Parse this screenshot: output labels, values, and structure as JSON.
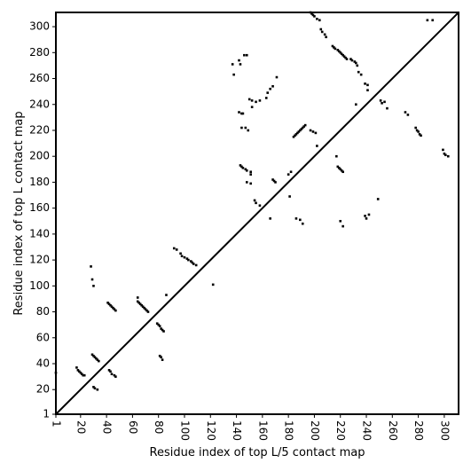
{
  "chart_data": {
    "type": "scatter",
    "xlabel": "Residue index of top L/5 contact map",
    "ylabel": "Residue index of top L contact map",
    "xlim": [
      1,
      311
    ],
    "ylim": [
      1,
      311
    ],
    "x_ticks": [
      1,
      20,
      40,
      60,
      80,
      100,
      120,
      140,
      160,
      180,
      200,
      220,
      240,
      260,
      280,
      300
    ],
    "x_tick_labels": [
      "1",
      "20",
      "40",
      "60",
      "80",
      "100",
      "120",
      "140",
      "160",
      "180",
      "200",
      "220",
      "240",
      "260",
      "280",
      "300"
    ],
    "y_ticks": [
      1,
      20,
      40,
      60,
      80,
      100,
      120,
      140,
      160,
      180,
      200,
      220,
      240,
      260,
      280,
      300
    ],
    "y_tick_labels": [
      "1",
      "20",
      "40",
      "60",
      "80",
      "100",
      "120",
      "140",
      "160",
      "180",
      "200",
      "220",
      "240",
      "260",
      "280",
      "300"
    ],
    "grid": false,
    "diagonal": true,
    "point_color": "#000000",
    "series": [
      {
        "region": "upper_left_top_L",
        "points": [
          [
            1,
            33
          ],
          [
            17,
            37
          ],
          [
            18,
            35
          ],
          [
            19,
            34
          ],
          [
            20,
            33
          ],
          [
            21,
            32
          ],
          [
            22,
            31
          ],
          [
            23,
            31
          ],
          [
            28,
            115
          ],
          [
            29,
            105
          ],
          [
            30,
            100
          ],
          [
            29,
            47
          ],
          [
            30,
            46
          ],
          [
            31,
            45
          ],
          [
            32,
            44
          ],
          [
            33,
            43
          ],
          [
            34,
            42
          ],
          [
            30,
            22
          ],
          [
            31,
            21
          ],
          [
            33,
            20
          ],
          [
            41,
            87
          ],
          [
            42,
            86
          ],
          [
            43,
            85
          ],
          [
            44,
            84
          ],
          [
            45,
            83
          ],
          [
            46,
            82
          ],
          [
            47,
            81
          ],
          [
            42,
            35
          ],
          [
            43,
            34
          ],
          [
            44,
            32
          ],
          [
            46,
            31
          ],
          [
            47,
            30
          ],
          [
            64,
            91
          ],
          [
            64,
            88
          ],
          [
            65,
            87
          ],
          [
            66,
            86
          ],
          [
            67,
            85
          ],
          [
            68,
            84
          ],
          [
            69,
            83
          ],
          [
            70,
            82
          ],
          [
            71,
            81
          ],
          [
            72,
            80
          ],
          [
            79,
            71
          ],
          [
            80,
            70
          ],
          [
            81,
            69
          ],
          [
            82,
            67
          ],
          [
            83,
            66
          ],
          [
            84,
            65
          ],
          [
            81,
            46
          ],
          [
            82,
            45
          ],
          [
            83,
            43
          ],
          [
            86,
            93
          ],
          [
            92,
            129
          ],
          [
            94,
            128
          ],
          [
            97,
            125
          ],
          [
            98,
            123
          ],
          [
            100,
            122
          ],
          [
            102,
            121
          ],
          [
            103,
            120
          ],
          [
            105,
            119
          ],
          [
            106,
            118
          ],
          [
            107,
            117
          ],
          [
            109,
            116
          ],
          [
            122,
            101
          ],
          [
            137,
            271
          ],
          [
            138,
            263
          ],
          [
            142,
            274
          ],
          [
            143,
            271
          ],
          [
            142,
            234
          ],
          [
            144,
            233
          ],
          [
            145,
            233
          ],
          [
            144,
            222
          ],
          [
            147,
            222
          ],
          [
            149,
            220
          ],
          [
            146,
            278
          ],
          [
            148,
            278
          ],
          [
            143,
            193
          ],
          [
            144,
            192
          ],
          [
            145,
            191
          ],
          [
            147,
            190
          ],
          [
            148,
            189
          ],
          [
            151,
            188
          ],
          [
            151,
            186
          ],
          [
            148,
            180
          ],
          [
            151,
            179
          ],
          [
            154,
            166
          ],
          [
            155,
            164
          ],
          [
            158,
            162
          ],
          [
            152,
            238
          ],
          [
            155,
            242
          ],
          [
            158,
            243
          ],
          [
            150,
            244
          ],
          [
            152,
            243
          ],
          [
            163,
            245
          ],
          [
            164,
            249
          ],
          [
            166,
            252
          ],
          [
            168,
            254
          ],
          [
            171,
            261
          ],
          [
            166,
            152
          ],
          [
            168,
            182
          ],
          [
            169,
            181
          ],
          [
            170,
            180
          ],
          [
            180,
            186
          ],
          [
            182,
            188
          ],
          [
            181,
            169
          ],
          [
            184,
            215
          ],
          [
            185,
            216
          ],
          [
            186,
            217
          ],
          [
            187,
            218
          ],
          [
            188,
            219
          ],
          [
            189,
            220
          ],
          [
            190,
            221
          ],
          [
            191,
            222
          ],
          [
            192,
            223
          ],
          [
            193,
            224
          ],
          [
            186,
            152
          ],
          [
            189,
            151
          ],
          [
            191,
            148
          ],
          [
            197,
            220
          ],
          [
            199,
            219
          ],
          [
            201,
            218
          ],
          [
            202,
            208
          ],
          [
            197,
            311
          ],
          [
            198,
            310
          ],
          [
            199,
            309
          ],
          [
            200,
            308
          ],
          [
            202,
            306
          ],
          [
            204,
            305
          ],
          [
            205,
            298
          ],
          [
            206,
            296
          ],
          [
            208,
            294
          ],
          [
            209,
            292
          ],
          [
            214,
            285
          ],
          [
            215,
            284
          ],
          [
            216,
            283
          ],
          [
            218,
            282
          ],
          [
            219,
            281
          ],
          [
            220,
            280
          ],
          [
            221,
            279
          ],
          [
            222,
            278
          ],
          [
            223,
            277
          ],
          [
            224,
            276
          ],
          [
            225,
            275
          ],
          [
            228,
            275
          ],
          [
            229,
            274
          ],
          [
            231,
            273
          ],
          [
            232,
            272
          ],
          [
            233,
            270
          ],
          [
            234,
            265
          ],
          [
            236,
            263
          ],
          [
            217,
            200
          ],
          [
            218,
            192
          ],
          [
            219,
            191
          ],
          [
            220,
            190
          ],
          [
            221,
            189
          ],
          [
            222,
            188
          ],
          [
            220,
            150
          ],
          [
            222,
            146
          ],
          [
            239,
            256
          ],
          [
            241,
            255
          ],
          [
            241,
            251
          ],
          [
            249,
            167
          ],
          [
            239,
            154
          ],
          [
            240,
            152
          ],
          [
            242,
            155
          ],
          [
            251,
            243
          ],
          [
            252,
            241
          ],
          [
            254,
            242
          ],
          [
            256,
            237
          ],
          [
            270,
            234
          ],
          [
            272,
            232
          ],
          [
            278,
            222
          ],
          [
            279,
            220
          ],
          [
            280,
            219
          ],
          [
            281,
            217
          ],
          [
            282,
            216
          ],
          [
            287,
            305
          ],
          [
            291,
            305
          ],
          [
            299,
            205
          ],
          [
            300,
            202
          ],
          [
            301,
            201
          ],
          [
            303,
            200
          ],
          [
            232,
            240
          ]
        ]
      }
    ]
  }
}
